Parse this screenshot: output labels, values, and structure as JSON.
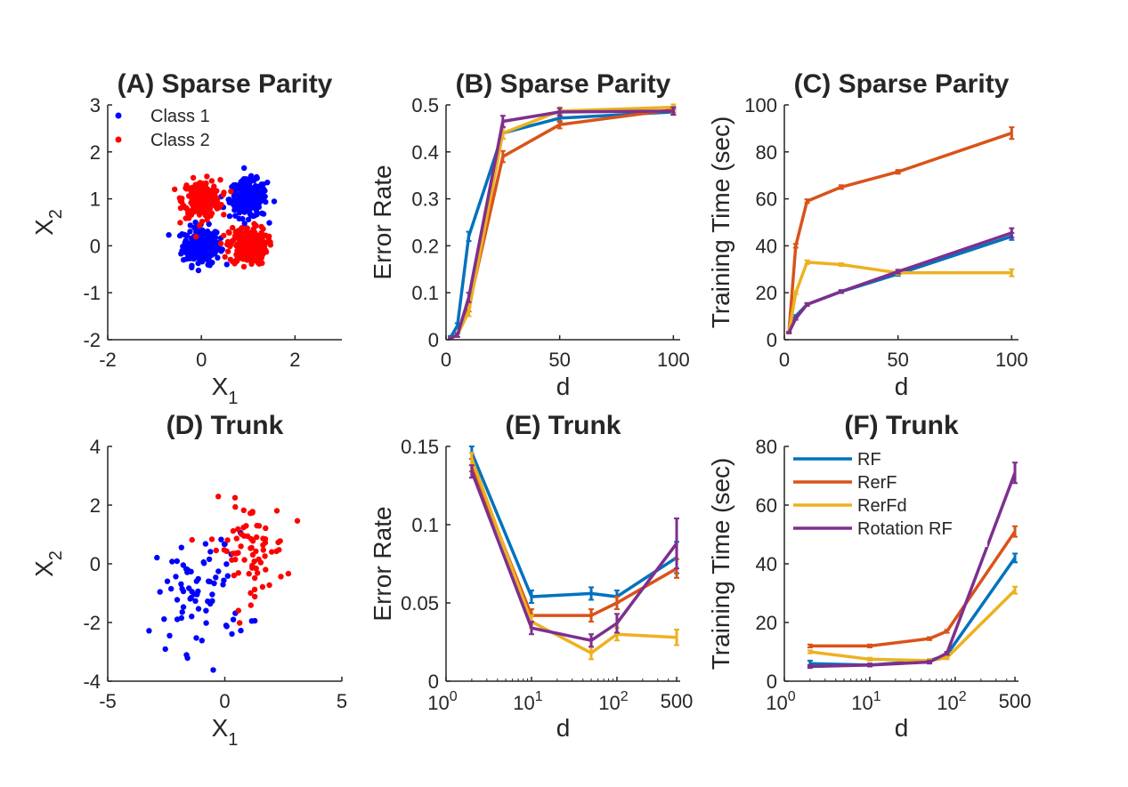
{
  "colors": {
    "RF": "#0072BD",
    "RerF": "#D95319",
    "RerFd": "#EDB120",
    "Rotation RF": "#7E2F8E",
    "Class 1": "#0000FF",
    "Class 2": "#FF0000",
    "axis": "#262626"
  },
  "chart_data": [
    {
      "id": "A",
      "type": "scatter",
      "title": "(A) Sparse Parity",
      "xlabel": "X",
      "xlabel_sub": "1",
      "ylabel": "X",
      "ylabel_sub": "2",
      "xlim": [
        -2,
        3
      ],
      "ylim": [
        -2,
        3
      ],
      "xticks": [
        -2,
        0,
        2
      ],
      "yticks": [
        -2,
        -1,
        0,
        1,
        2,
        3
      ],
      "grid": false,
      "legend": {
        "placement": "top-left",
        "entries": [
          "Class 1",
          "Class 2"
        ]
      },
      "clusters": [
        {
          "name": "Class 1",
          "center": [
            0,
            0
          ],
          "spread": 0.2,
          "n": 220
        },
        {
          "name": "Class 1",
          "center": [
            1,
            1
          ],
          "spread": 0.2,
          "n": 220
        },
        {
          "name": "Class 2",
          "center": [
            0,
            1
          ],
          "spread": 0.2,
          "n": 220
        },
        {
          "name": "Class 2",
          "center": [
            1,
            0
          ],
          "spread": 0.2,
          "n": 220
        }
      ]
    },
    {
      "id": "B",
      "type": "line",
      "title": "(B) Sparse Parity",
      "xlabel": "d",
      "ylabel": "Error Rate",
      "xscale": "linear",
      "xlim": [
        0,
        103
      ],
      "ylim": [
        0,
        0.5
      ],
      "xticks": [
        0,
        50,
        100
      ],
      "yticks": [
        0,
        0.1,
        0.2,
        0.3,
        0.4,
        0.5
      ],
      "ytick_labels": [
        "0",
        "0.1",
        "0.2",
        "0.3",
        "0.4",
        "0.5"
      ],
      "x": [
        2,
        5,
        10,
        25,
        50,
        100
      ],
      "series": [
        {
          "name": "RF",
          "values": [
            0.005,
            0.03,
            0.22,
            0.44,
            0.472,
            0.485
          ],
          "err": [
            0.003,
            0.005,
            0.01,
            0.012,
            0.008,
            0.006
          ]
        },
        {
          "name": "RerF",
          "values": [
            0.003,
            0.01,
            0.07,
            0.39,
            0.458,
            0.49
          ],
          "err": [
            0.002,
            0.004,
            0.01,
            0.012,
            0.008,
            0.006
          ]
        },
        {
          "name": "RerFd",
          "values": [
            0.003,
            0.01,
            0.06,
            0.44,
            0.487,
            0.495
          ],
          "err": [
            0.002,
            0.004,
            0.01,
            0.012,
            0.008,
            0.006
          ]
        },
        {
          "name": "Rotation RF",
          "values": [
            0.003,
            0.01,
            0.09,
            0.465,
            0.485,
            0.487
          ],
          "err": [
            0.002,
            0.004,
            0.01,
            0.012,
            0.008,
            0.008
          ]
        }
      ]
    },
    {
      "id": "C",
      "type": "line",
      "title": "(C) Sparse Parity",
      "xlabel": "d",
      "ylabel": "Training Time (sec)",
      "xscale": "linear",
      "xlim": [
        0,
        103
      ],
      "ylim": [
        0,
        100
      ],
      "xticks": [
        0,
        50,
        100
      ],
      "yticks": [
        0,
        20,
        40,
        60,
        80,
        100
      ],
      "x": [
        2,
        5,
        10,
        25,
        50,
        100
      ],
      "series": [
        {
          "name": "RF",
          "values": [
            3,
            10,
            15,
            20.5,
            28,
            44
          ],
          "err": [
            0.3,
            0.5,
            0.6,
            0.6,
            0.8,
            1.5
          ]
        },
        {
          "name": "RerF",
          "values": [
            3,
            40,
            59,
            65,
            71.5,
            88
          ],
          "err": [
            0.3,
            0.8,
            0.8,
            0.8,
            0.8,
            2.5
          ]
        },
        {
          "name": "RerFd",
          "values": [
            3,
            20,
            33,
            32,
            28.5,
            28.5
          ],
          "err": [
            0.3,
            0.6,
            0.8,
            0.6,
            0.8,
            1.5
          ]
        },
        {
          "name": "Rotation RF",
          "values": [
            3,
            9,
            15,
            20.5,
            29,
            45.5
          ],
          "err": [
            0.3,
            0.5,
            0.6,
            0.6,
            0.8,
            2.0
          ]
        }
      ]
    },
    {
      "id": "D",
      "type": "scatter",
      "title": "(D) Trunk",
      "xlabel": "X",
      "xlabel_sub": "1",
      "ylabel": "X",
      "ylabel_sub": "2",
      "xlim": [
        -5,
        5
      ],
      "ylim": [
        -4,
        4
      ],
      "xticks": [
        -5,
        0,
        5
      ],
      "yticks": [
        -4,
        -2,
        0,
        2,
        4
      ],
      "grid": false,
      "clusters": [
        {
          "name": "Class 1",
          "center": [
            -1,
            -1
          ],
          "spread": 1.0,
          "n": 75
        },
        {
          "name": "Class 2",
          "center": [
            1,
            0.5
          ],
          "spread": 0.8,
          "n": 75
        }
      ]
    },
    {
      "id": "E",
      "type": "line",
      "title": "(E) Trunk",
      "xlabel": "d",
      "ylabel": "Error Rate",
      "xscale": "log",
      "xlim": [
        1,
        550
      ],
      "ylim": [
        0,
        0.15
      ],
      "xticks": [
        1,
        10,
        100,
        500
      ],
      "xtick_labels": [
        "10^0",
        "10^1",
        "10^2",
        "500"
      ],
      "yticks": [
        0,
        0.05,
        0.1,
        0.15
      ],
      "ytick_labels": [
        "0",
        "0.05",
        "0.1",
        "0.15"
      ],
      "x": [
        2,
        10,
        50,
        100,
        500
      ],
      "series": [
        {
          "name": "RF",
          "values": [
            0.146,
            0.054,
            0.056,
            0.054,
            0.079
          ],
          "err": [
            0.004,
            0.004,
            0.004,
            0.004,
            0.01
          ]
        },
        {
          "name": "RerF",
          "values": [
            0.138,
            0.042,
            0.042,
            0.05,
            0.072
          ],
          "err": [
            0.004,
            0.004,
            0.004,
            0.004,
            0.006
          ]
        },
        {
          "name": "RerFd",
          "values": [
            0.142,
            0.038,
            0.018,
            0.03,
            0.028
          ],
          "err": [
            0.004,
            0.004,
            0.004,
            0.004,
            0.005
          ]
        },
        {
          "name": "Rotation RF",
          "values": [
            0.134,
            0.034,
            0.026,
            0.037,
            0.088
          ],
          "err": [
            0.004,
            0.004,
            0.004,
            0.006,
            0.016
          ]
        }
      ]
    },
    {
      "id": "F",
      "type": "line",
      "title": "(F) Trunk",
      "xlabel": "d",
      "ylabel": "Training Time (sec)",
      "xscale": "log",
      "xlim": [
        1,
        550
      ],
      "ylim": [
        0,
        80
      ],
      "xticks": [
        1,
        10,
        100,
        500
      ],
      "xtick_labels": [
        "10^0",
        "10^1",
        "10^2",
        "500"
      ],
      "yticks": [
        0,
        20,
        40,
        60,
        80
      ],
      "x": [
        2,
        10,
        50,
        80,
        500
      ],
      "legend": {
        "placement": "top-left",
        "entries": [
          "RF",
          "RerF",
          "RerFd",
          "Rotation RF"
        ]
      },
      "series": [
        {
          "name": "RF",
          "values": [
            6,
            5.5,
            7,
            9,
            42
          ],
          "err": [
            1.0,
            0.5,
            0.5,
            0.5,
            1.5
          ]
        },
        {
          "name": "RerF",
          "values": [
            12,
            12,
            14.5,
            17,
            51
          ],
          "err": [
            0.5,
            0.5,
            0.5,
            0.5,
            1.8
          ]
        },
        {
          "name": "RerFd",
          "values": [
            10,
            7.5,
            7,
            8,
            31
          ],
          "err": [
            0.5,
            0.5,
            0.5,
            0.5,
            1.2
          ]
        },
        {
          "name": "Rotation RF",
          "values": [
            5,
            5.5,
            6.5,
            9.5,
            71
          ],
          "err": [
            0.5,
            0.5,
            0.5,
            0.5,
            3.5
          ]
        }
      ]
    }
  ]
}
